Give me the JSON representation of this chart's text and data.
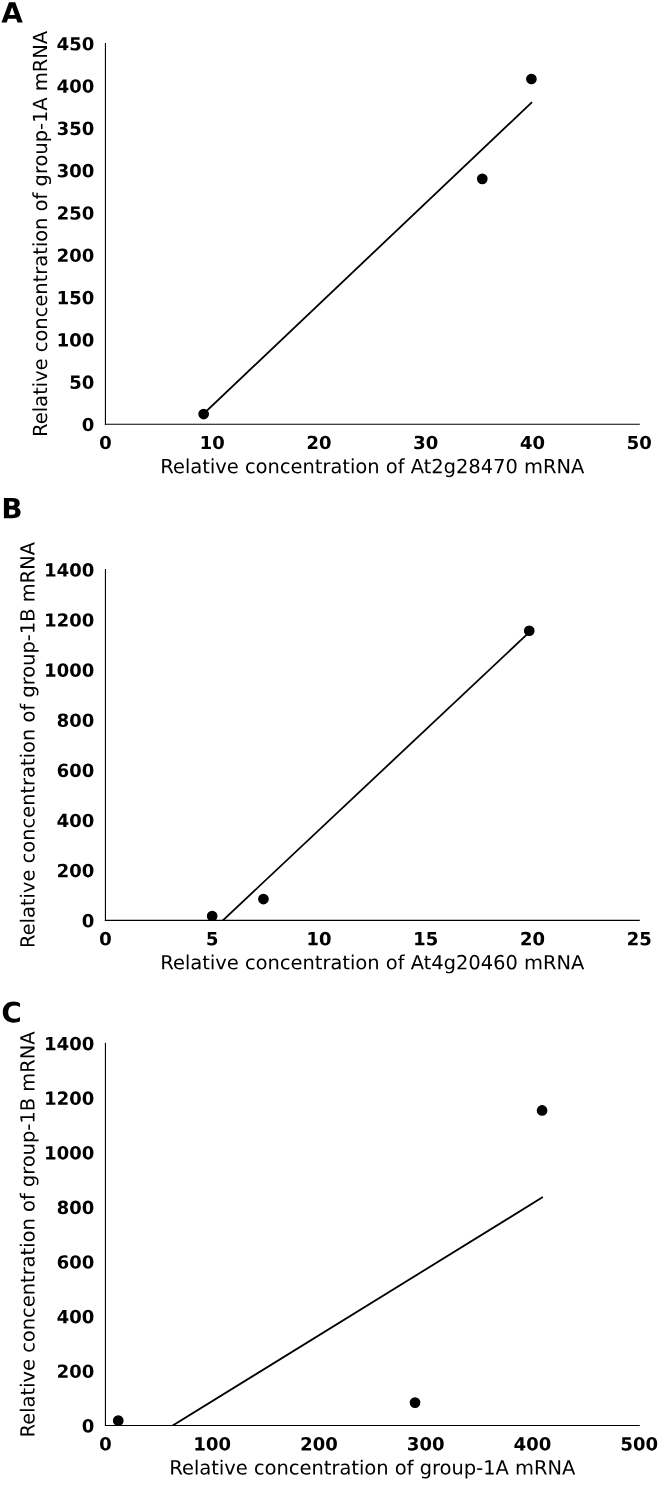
{
  "chart_data": [
    {
      "type": "scatter",
      "title": "A",
      "xlabel": "Relative concentration of At2g28470 mRNA",
      "ylabel": "Relative concentration of group-1A mRNA",
      "xlim": [
        0,
        50
      ],
      "xticks": [
        0,
        10,
        20,
        30,
        40,
        50
      ],
      "ylim": [
        0,
        450
      ],
      "yticks": [
        0,
        50,
        100,
        150,
        200,
        250,
        300,
        350,
        400,
        450
      ],
      "grid": false,
      "legend": false,
      "series": [
        {
          "marker": "circle",
          "color": "#000000",
          "x": [
            9.2,
            35.3,
            39.9
          ],
          "values": [
            12,
            290,
            408
          ]
        },
        {
          "type": "line",
          "marker": "none",
          "color": "#000000",
          "x": [
            9.5,
            39.9
          ],
          "values": [
            16,
            380
          ]
        }
      ]
    },
    {
      "type": "scatter",
      "title": "B",
      "xlabel": "Relative concentration of At4g20460 mRNA",
      "ylabel": "Relative concentration of group-1B mRNA",
      "xlim": [
        0,
        25
      ],
      "xticks": [
        0,
        5,
        10,
        15,
        20,
        25
      ],
      "ylim": [
        0,
        1400
      ],
      "yticks": [
        0,
        200,
        400,
        600,
        800,
        1000,
        1200,
        1400
      ],
      "grid": false,
      "legend": false,
      "series": [
        {
          "marker": "circle",
          "color": "#000000",
          "x": [
            5.0,
            7.4,
            19.85
          ],
          "values": [
            17,
            85,
            1156
          ]
        },
        {
          "type": "line",
          "marker": "none",
          "color": "#000000",
          "x": [
            5.5,
            19.7
          ],
          "values": [
            0,
            1138
          ]
        }
      ]
    },
    {
      "type": "scatter",
      "title": "C",
      "xlabel": "Relative concentration of group-1A mRNA",
      "ylabel": "Relative concentration of group-1B mRNA",
      "xlim": [
        0,
        500
      ],
      "xticks": [
        0,
        100,
        200,
        300,
        400,
        500
      ],
      "ylim": [
        0,
        1400
      ],
      "yticks": [
        0,
        200,
        400,
        600,
        800,
        1000,
        1200,
        1400
      ],
      "grid": false,
      "legend": false,
      "series": [
        {
          "marker": "circle",
          "color": "#000000",
          "x": [
            12,
            290,
            409
          ],
          "values": [
            18,
            84,
            1154
          ]
        },
        {
          "type": "line",
          "marker": "none",
          "color": "#000000",
          "x": [
            63,
            409
          ],
          "values": [
            0,
            835
          ]
        }
      ]
    }
  ]
}
